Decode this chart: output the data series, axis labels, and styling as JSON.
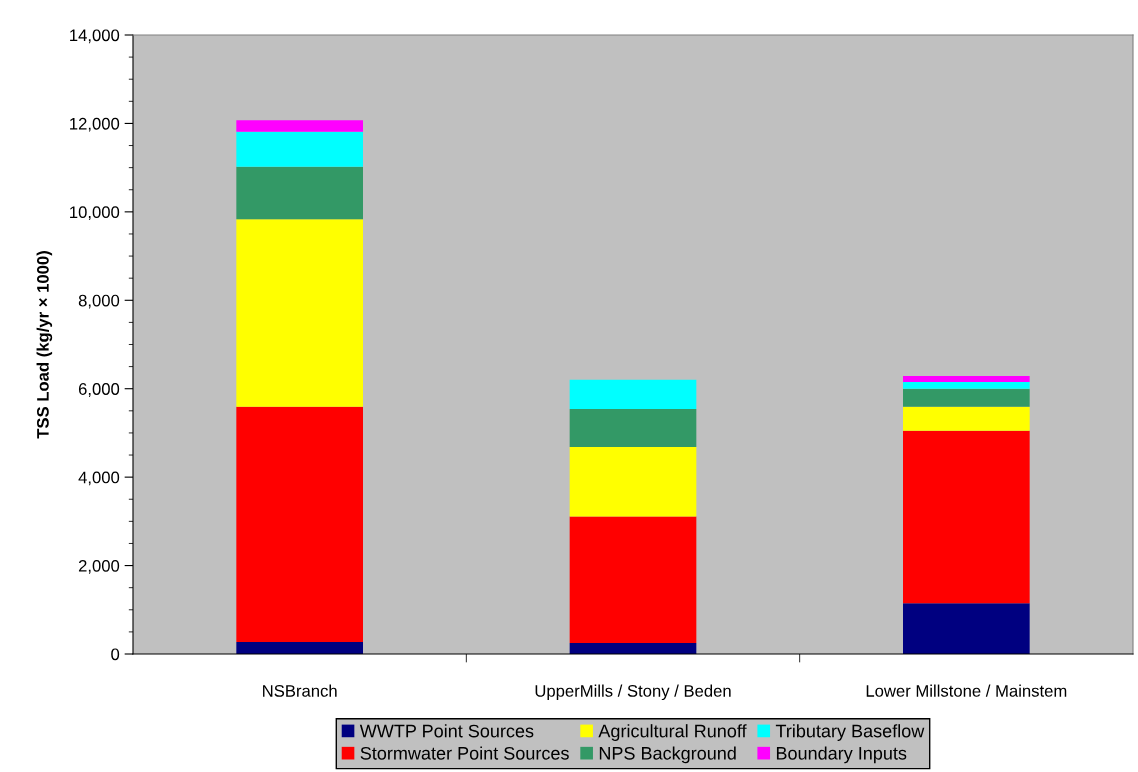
{
  "chart_data": {
    "type": "bar",
    "stacked": true,
    "ylabel": "TSS Load (kg/yr × 1000)",
    "categories": [
      "NSBranch",
      "UpperMills / Stony / Beden",
      "Lower Millstone / Mainstem"
    ],
    "series": [
      {
        "name": "WWTP Point Sources",
        "color": "#000080",
        "values": [
          270,
          250,
          1150
        ]
      },
      {
        "name": "Stormwater Point Sources",
        "color": "#ff0000",
        "values": [
          5320,
          2860,
          3900
        ]
      },
      {
        "name": "Agricultural Runoff",
        "color": "#ffff00",
        "values": [
          4240,
          1570,
          540
        ]
      },
      {
        "name": "NPS Background",
        "color": "#339966",
        "values": [
          1190,
          860,
          410
        ]
      },
      {
        "name": "Tributary Baseflow",
        "color": "#00ffff",
        "values": [
          790,
          660,
          150
        ]
      },
      {
        "name": "Boundary Inputs",
        "color": "#ff00ff",
        "values": [
          260,
          0,
          140
        ]
      }
    ],
    "ylim": [
      0,
      14000
    ],
    "yticks": [
      {
        "value": 0,
        "label": "0"
      },
      {
        "value": 2000,
        "label": "2,000"
      },
      {
        "value": 4000,
        "label": "4,000"
      },
      {
        "value": 6000,
        "label": "6,000"
      },
      {
        "value": 8000,
        "label": "8,000"
      },
      {
        "value": 10000,
        "label": "10,000"
      },
      {
        "value": 12000,
        "label": "12,000"
      },
      {
        "value": 14000,
        "label": "14,000"
      }
    ],
    "grid": false,
    "legend": "bottom"
  }
}
